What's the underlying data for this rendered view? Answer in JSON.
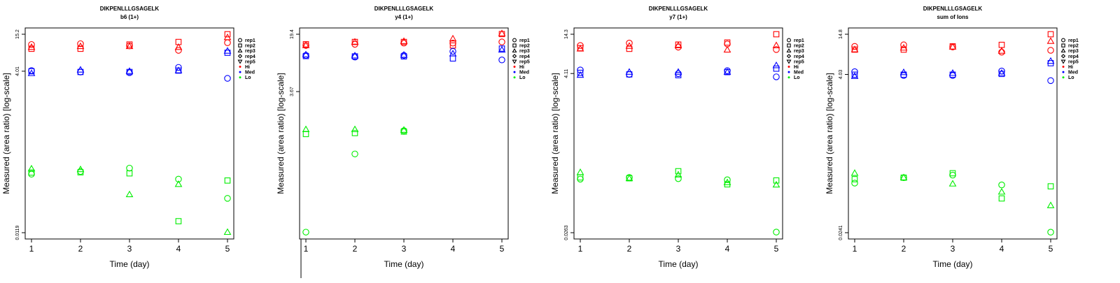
{
  "chart_data": [
    {
      "type": "scatter",
      "title": "DIKPENLLLGSAGELK",
      "subtitle": "b6 (1+)",
      "xlabel": "Time (day)",
      "ylabel": "Measured (area ratio) [log-scale]",
      "xlim": [
        1,
        5
      ],
      "ylim": [
        0.0119,
        15.2
      ],
      "ylog": true,
      "x_ticks": [
        "1",
        "2",
        "3",
        "4",
        "5"
      ],
      "y_ticks": [
        {
          "value": 0.0119,
          "label": "0.0119"
        },
        {
          "value": 4.01,
          "label": "4.01"
        },
        {
          "value": 15.2,
          "label": "15.2"
        }
      ],
      "grid": false,
      "legend_position": "right",
      "series": [
        {
          "group": "Hi",
          "rep": "rep1",
          "points": [
            [
              1,
              10.5
            ],
            [
              2,
              10.8
            ],
            [
              3,
              10.0
            ],
            [
              4,
              8.5
            ],
            [
              5,
              11.2
            ]
          ]
        },
        {
          "group": "Hi",
          "rep": "rep2",
          "points": [
            [
              1,
              9.0
            ],
            [
              2,
              9.0
            ],
            [
              3,
              10.5
            ],
            [
              4,
              11.5
            ],
            [
              5,
              15.2
            ]
          ]
        },
        {
          "group": "Hi",
          "rep": "rep3",
          "points": [
            [
              1,
              9.5
            ],
            [
              2,
              9.8
            ],
            [
              3,
              9.8
            ],
            [
              4,
              9.5
            ],
            [
              5,
              13.5
            ]
          ]
        },
        {
          "group": "Med",
          "rep": "rep1",
          "points": [
            [
              1,
              4.1
            ],
            [
              2,
              3.9
            ],
            [
              3,
              3.8
            ],
            [
              4,
              4.6
            ],
            [
              5,
              3.1
            ]
          ]
        },
        {
          "group": "Med",
          "rep": "rep2",
          "points": [
            [
              1,
              4.0
            ],
            [
              2,
              3.9
            ],
            [
              3,
              3.9
            ],
            [
              4,
              4.1
            ],
            [
              5,
              7.8
            ]
          ]
        },
        {
          "group": "Med",
          "rep": "rep3",
          "points": [
            [
              1,
              3.7
            ],
            [
              2,
              4.2
            ],
            [
              3,
              4.0
            ],
            [
              4,
              4.1
            ],
            [
              5,
              8.3
            ]
          ]
        },
        {
          "group": "Lo",
          "rep": "rep1",
          "points": [
            [
              1,
              0.098
            ],
            [
              2,
              0.108
            ],
            [
              3,
              0.122
            ],
            [
              4,
              0.082
            ],
            [
              5,
              0.041
            ]
          ]
        },
        {
          "group": "Lo",
          "rep": "rep2",
          "points": [
            [
              1,
              0.104
            ],
            [
              2,
              0.105
            ],
            [
              3,
              0.101
            ],
            [
              4,
              0.018
            ],
            [
              5,
              0.078
            ]
          ]
        },
        {
          "group": "Lo",
          "rep": "rep3",
          "points": [
            [
              1,
              0.119
            ],
            [
              2,
              0.116
            ],
            [
              3,
              0.047
            ],
            [
              4,
              0.068
            ],
            [
              5,
              0.0121
            ]
          ]
        }
      ]
    },
    {
      "type": "scatter",
      "title": "DIKPENLLLGSAGELK",
      "subtitle": "y4 (1+)",
      "xlabel": "Time (day)",
      "ylabel": "Measured (area ratio) [log-scale]",
      "xlim": [
        1,
        5
      ],
      "ylim": [
        0.061,
        19.4
      ],
      "ylog": true,
      "x_ticks": [
        "1",
        "2",
        "3",
        "4",
        "5"
      ],
      "y_ticks": [
        {
          "value": 3.67,
          "label": "3.67"
        },
        {
          "value": 19.4,
          "label": "19.4"
        }
      ],
      "grid": false,
      "legend_position": "right",
      "series": [
        {
          "group": "Hi",
          "rep": "rep1",
          "points": [
            [
              1,
              14.0
            ],
            [
              2,
              14.5
            ],
            [
              3,
              15.0
            ],
            [
              4,
              15.0
            ],
            [
              5,
              15.5
            ]
          ]
        },
        {
          "group": "Hi",
          "rep": "rep2",
          "points": [
            [
              1,
              14.5
            ],
            [
              2,
              15.5
            ],
            [
              3,
              15.5
            ],
            [
              4,
              14.0
            ],
            [
              5,
              19.5
            ]
          ]
        },
        {
          "group": "Hi",
          "rep": "rep3",
          "points": [
            [
              1,
              14.0
            ],
            [
              2,
              15.5
            ],
            [
              3,
              15.8
            ],
            [
              4,
              17.0
            ],
            [
              5,
              19.8
            ]
          ]
        },
        {
          "group": "Med",
          "rep": "rep1",
          "points": [
            [
              1,
              10.5
            ],
            [
              2,
              10.0
            ],
            [
              3,
              10.5
            ],
            [
              4,
              11.8
            ],
            [
              5,
              9.2
            ]
          ]
        },
        {
          "group": "Med",
          "rep": "rep2",
          "points": [
            [
              1,
              10.3
            ],
            [
              2,
              10.2
            ],
            [
              3,
              10.2
            ],
            [
              4,
              9.6
            ],
            [
              5,
              12.8
            ]
          ]
        },
        {
          "group": "Med",
          "rep": "rep3",
          "points": [
            [
              1,
              10.7
            ],
            [
              2,
              10.4
            ],
            [
              3,
              10.6
            ],
            [
              4,
              11.0
            ],
            [
              5,
              12.3
            ]
          ]
        },
        {
          "group": "Lo",
          "rep": "rep1",
          "points": [
            [
              1,
              0.062
            ],
            [
              2,
              0.6
            ],
            [
              3,
              1.18
            ],
            [
              4,
              null
            ],
            [
              5,
              null
            ]
          ]
        },
        {
          "group": "Lo",
          "rep": "rep2",
          "points": [
            [
              1,
              1.07
            ],
            [
              2,
              1.1
            ],
            [
              3,
              1.15
            ],
            [
              4,
              null
            ],
            [
              5,
              null
            ]
          ]
        },
        {
          "group": "Lo",
          "rep": "rep3",
          "points": [
            [
              1,
              1.22
            ],
            [
              2,
              1.22
            ],
            [
              3,
              1.2
            ],
            [
              4,
              null
            ],
            [
              5,
              null
            ]
          ]
        }
      ]
    },
    {
      "type": "scatter",
      "title": "DIKPENLLLGSAGELK",
      "subtitle": "y7 (1+)",
      "xlabel": "Time (day)",
      "ylabel": "Measured (area ratio) [log-scale]",
      "xlim": [
        1,
        5
      ],
      "ylim": [
        0.0263,
        14.3
      ],
      "ylog": true,
      "x_ticks": [
        "1",
        "2",
        "3",
        "4",
        "5"
      ],
      "y_ticks": [
        {
          "value": 0.0263,
          "label": "0.0263"
        },
        {
          "value": 4.11,
          "label": "4.11"
        },
        {
          "value": 14.3,
          "label": "14.3"
        }
      ],
      "grid": false,
      "legend_position": "right",
      "series": [
        {
          "group": "Hi",
          "rep": "rep1",
          "points": [
            [
              1,
              10.0
            ],
            [
              2,
              10.8
            ],
            [
              3,
              9.5
            ],
            [
              4,
              10.5
            ],
            [
              5,
              8.8
            ]
          ]
        },
        {
          "group": "Hi",
          "rep": "rep2",
          "points": [
            [
              1,
              9.2
            ],
            [
              2,
              9.0
            ],
            [
              3,
              10.3
            ],
            [
              4,
              11.0
            ],
            [
              5,
              14.3
            ]
          ]
        },
        {
          "group": "Hi",
          "rep": "rep3",
          "points": [
            [
              1,
              9.0
            ],
            [
              2,
              9.8
            ],
            [
              3,
              10.0
            ],
            [
              4,
              8.7
            ],
            [
              5,
              10.0
            ]
          ]
        },
        {
          "group": "Med",
          "rep": "rep1",
          "points": [
            [
              1,
              4.6
            ],
            [
              2,
              4.0
            ],
            [
              3,
              4.1
            ],
            [
              4,
              4.5
            ],
            [
              5,
              3.7
            ]
          ]
        },
        {
          "group": "Med",
          "rep": "rep2",
          "points": [
            [
              1,
              4.2
            ],
            [
              2,
              4.0
            ],
            [
              3,
              3.9
            ],
            [
              4,
              4.3
            ],
            [
              5,
              4.8
            ]
          ]
        },
        {
          "group": "Med",
          "rep": "rep3",
          "points": [
            [
              1,
              3.9
            ],
            [
              2,
              4.3
            ],
            [
              3,
              4.3
            ],
            [
              4,
              4.3
            ],
            [
              5,
              5.3
            ]
          ]
        },
        {
          "group": "Lo",
          "rep": "rep1",
          "points": [
            [
              1,
              0.144
            ],
            [
              2,
              0.152
            ],
            [
              3,
              0.146
            ],
            [
              4,
              0.141
            ],
            [
              5,
              0.0268
            ]
          ]
        },
        {
          "group": "Lo",
          "rep": "rep2",
          "points": [
            [
              1,
              0.152
            ],
            [
              2,
              0.148
            ],
            [
              3,
              0.185
            ],
            [
              4,
              0.122
            ],
            [
              5,
              0.138
            ]
          ]
        },
        {
          "group": "Lo",
          "rep": "rep3",
          "points": [
            [
              1,
              0.178
            ],
            [
              2,
              0.147
            ],
            [
              3,
              0.165
            ],
            [
              4,
              0.129
            ],
            [
              5,
              0.12
            ]
          ]
        }
      ]
    },
    {
      "type": "scatter",
      "title": "DIKPENLLLGSAGELK",
      "subtitle": "sum of Ions",
      "xlabel": "Time (day)",
      "ylabel": "Measured (area ratio) [log-scale]",
      "xlim": [
        1,
        5
      ],
      "ylim": [
        0.0241,
        14.8
      ],
      "ylog": true,
      "x_ticks": [
        "1",
        "2",
        "3",
        "4",
        "5"
      ],
      "y_ticks": [
        {
          "value": 0.0241,
          "label": "0.0241"
        },
        {
          "value": 4.03,
          "label": "4.03"
        },
        {
          "value": 14.8,
          "label": "14.8"
        }
      ],
      "grid": false,
      "legend_position": "right",
      "series": [
        {
          "group": "Hi",
          "rep": "rep1",
          "points": [
            [
              1,
              10.0
            ],
            [
              2,
              10.5
            ],
            [
              3,
              9.8
            ],
            [
              4,
              8.3
            ],
            [
              5,
              8.8
            ]
          ]
        },
        {
          "group": "Hi",
          "rep": "rep2",
          "points": [
            [
              1,
              9.0
            ],
            [
              2,
              9.0
            ],
            [
              3,
              10.0
            ],
            [
              4,
              10.5
            ],
            [
              5,
              14.8
            ]
          ]
        },
        {
          "group": "Hi",
          "rep": "rep3",
          "points": [
            [
              1,
              9.0
            ],
            [
              2,
              9.5
            ],
            [
              3,
              9.8
            ],
            [
              4,
              8.6
            ],
            [
              5,
              11.8
            ]
          ]
        },
        {
          "group": "Med",
          "rep": "rep1",
          "points": [
            [
              1,
              4.4
            ],
            [
              2,
              3.9
            ],
            [
              3,
              3.9
            ],
            [
              4,
              4.5
            ],
            [
              5,
              3.3
            ]
          ]
        },
        {
          "group": "Med",
          "rep": "rep2",
          "points": [
            [
              1,
              4.0
            ],
            [
              2,
              4.0
            ],
            [
              3,
              4.0
            ],
            [
              4,
              4.1
            ],
            [
              5,
              5.8
            ]
          ]
        },
        {
          "group": "Med",
          "rep": "rep3",
          "points": [
            [
              1,
              3.8
            ],
            [
              2,
              4.3
            ],
            [
              3,
              4.2
            ],
            [
              4,
              4.2
            ],
            [
              5,
              6.2
            ]
          ]
        },
        {
          "group": "Lo",
          "rep": "rep1",
          "points": [
            [
              1,
              0.12
            ],
            [
              2,
              0.143
            ],
            [
              3,
              0.155
            ],
            [
              4,
              0.113
            ],
            [
              5,
              0.0245
            ]
          ]
        },
        {
          "group": "Lo",
          "rep": "rep2",
          "points": [
            [
              1,
              0.136
            ],
            [
              2,
              0.143
            ],
            [
              3,
              0.165
            ],
            [
              4,
              0.073
            ],
            [
              5,
              0.108
            ]
          ]
        },
        {
          "group": "Lo",
          "rep": "rep3",
          "points": [
            [
              1,
              0.165
            ],
            [
              2,
              0.143
            ],
            [
              3,
              0.117
            ],
            [
              4,
              0.09
            ],
            [
              5,
              0.058
            ]
          ]
        }
      ]
    }
  ],
  "legend": {
    "replicates": [
      {
        "label": "rep1",
        "symbol": "circle"
      },
      {
        "label": "rep2",
        "symbol": "square"
      },
      {
        "label": "rep3",
        "symbol": "triangle-up"
      },
      {
        "label": "rep4",
        "symbol": "diamond"
      },
      {
        "label": "rep5",
        "symbol": "triangle-down"
      }
    ],
    "groups": [
      {
        "label": "Hi",
        "color": "#ff0000"
      },
      {
        "label": "Med",
        "color": "#0000ff"
      },
      {
        "label": "Lo",
        "color": "#00ee00"
      }
    ]
  }
}
